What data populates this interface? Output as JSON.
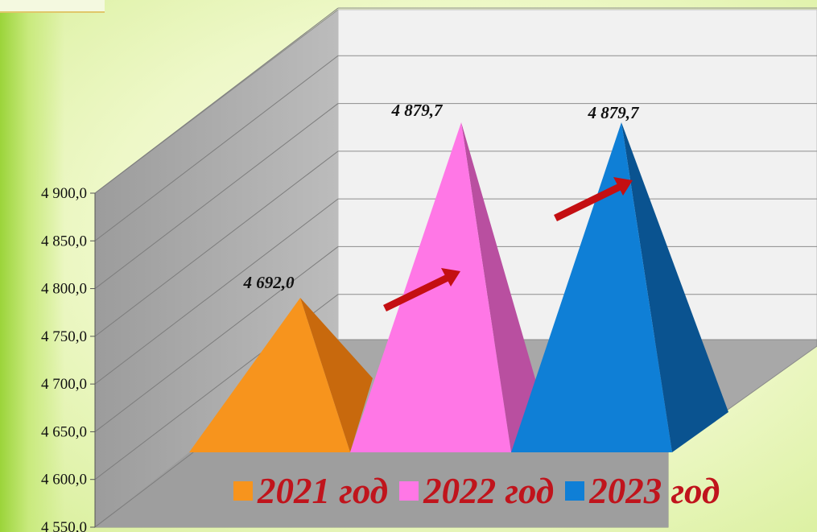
{
  "chart_data": {
    "type": "bar",
    "shape": "3d-pyramid",
    "categories": [
      "2021 год",
      "2022 год",
      "2023 год"
    ],
    "values": [
      4692.0,
      4879.7,
      4879.7
    ],
    "data_labels": [
      "4 692,0",
      "4 879,7",
      "4 879,7"
    ],
    "ylim": [
      4550,
      4900
    ],
    "yticks": [
      "4 550,0",
      "4 600,0",
      "4 650,0",
      "4 700,0",
      "4 750,0",
      "4 800,0",
      "4 850,0",
      "4 900,0"
    ],
    "colors": [
      "#f7941d",
      "#ff77e6",
      "#0f7fd6"
    ],
    "legend": [
      "2021 год",
      "2022 год",
      "2023 год"
    ],
    "legend_position": "bottom",
    "grid": true,
    "trend_arrows": 2
  }
}
